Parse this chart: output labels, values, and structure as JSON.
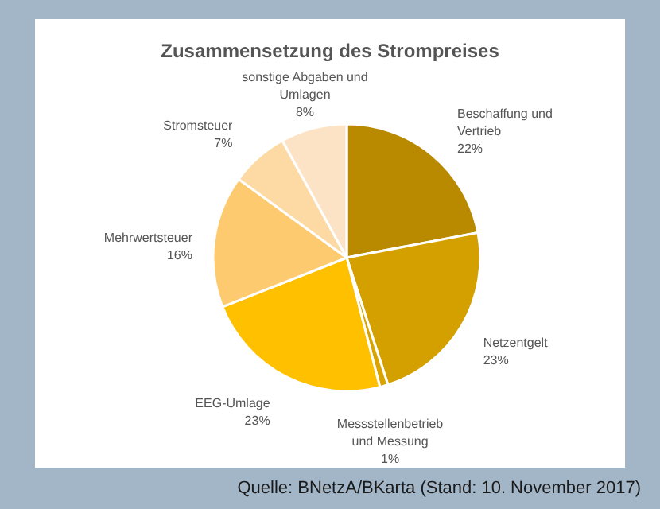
{
  "chart_data": {
    "type": "pie",
    "title": "Zusammensetzung des Strompreises",
    "categories": [
      "Beschaffung und Vertrieb",
      "Netzentgelt",
      "Messstellenbetrieb und Messung",
      "EEG-Umlage",
      "Mehrwertsteuer",
      "Stromsteuer",
      "sonstige Abgaben und Umlagen"
    ],
    "values": [
      22,
      23,
      1,
      23,
      16,
      7,
      8
    ],
    "value_labels": [
      "22%",
      "23%",
      "1%",
      "23%",
      "16%",
      "7%",
      "8%"
    ],
    "colors": [
      "#b98a00",
      "#d4a000",
      "#d9a300",
      "#ffc000",
      "#fdca70",
      "#fdd9a3",
      "#fde3c6"
    ],
    "annotations": [
      "Quelle: BNetzA/BKarta (Stand: 10. November 2017)"
    ]
  }
}
